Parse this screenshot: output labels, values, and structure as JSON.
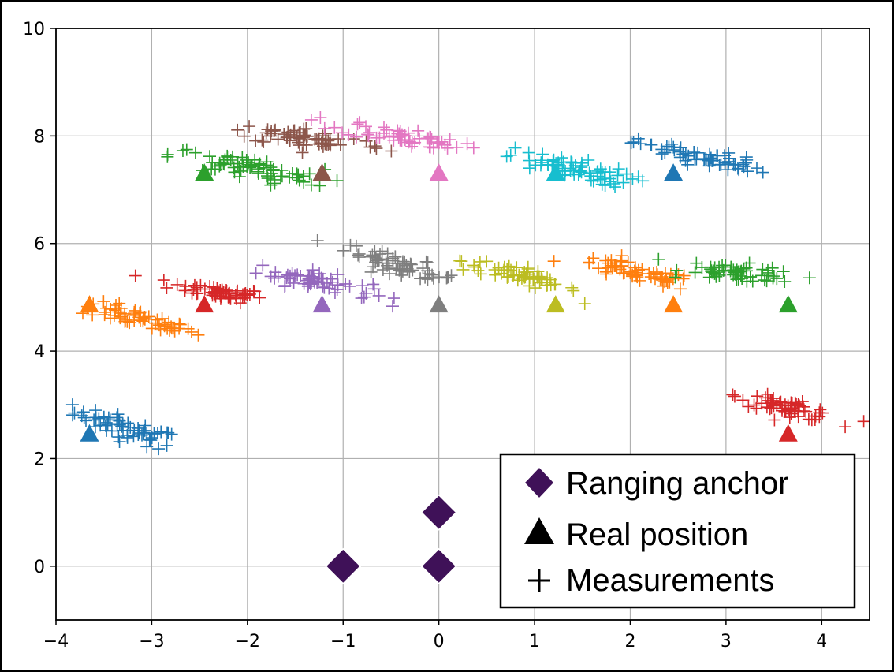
{
  "chart_data": {
    "type": "scatter",
    "title": "",
    "xlabel": "",
    "ylabel": "",
    "xlim": [
      -4,
      4.5
    ],
    "ylim": [
      -1,
      10
    ],
    "xticks": [
      -4,
      -3,
      -2,
      -1,
      0,
      1,
      2,
      3,
      4
    ],
    "yticks": [
      0,
      2,
      4,
      6,
      8,
      10
    ],
    "xtick_labels": [
      "−4",
      "−3",
      "−2",
      "−1",
      "0",
      "1",
      "2",
      "3",
      "4"
    ],
    "ytick_labels": [
      "0",
      "2",
      "4",
      "6",
      "8",
      "10"
    ],
    "grid": true,
    "legend": {
      "placement": "lower-right",
      "entries": [
        {
          "label": "Ranging anchor",
          "marker": "diamond",
          "color": "#3f1158"
        },
        {
          "label": "Real position",
          "marker": "triangle",
          "color": "#000000"
        },
        {
          "label": "Measurements",
          "marker": "plus",
          "color": "#000000"
        }
      ]
    },
    "anchors": [
      {
        "x": -1,
        "y": 0
      },
      {
        "x": 0,
        "y": 0
      },
      {
        "x": 0,
        "y": 1
      }
    ],
    "anchor_color": "#3f1158",
    "groups": [
      {
        "color": "#1f77b4",
        "real": [
          -3.65,
          2.45
        ],
        "center": [
          -3.25,
          2.55
        ],
        "spread": [
          0.28,
          0.18
        ],
        "tilt": -0.55,
        "count": 60
      },
      {
        "color": "#ff7f0e",
        "real": [
          -3.65,
          4.85
        ],
        "center": [
          -3.15,
          4.6
        ],
        "spread": [
          0.3,
          0.14
        ],
        "tilt": -0.4,
        "count": 60
      },
      {
        "color": "#d62728",
        "real": [
          -2.45,
          4.85
        ],
        "center": [
          -2.3,
          5.1
        ],
        "spread": [
          0.25,
          0.12
        ],
        "tilt": -0.25,
        "count": 60
      },
      {
        "color": "#9467bd",
        "real": [
          -1.22,
          4.85
        ],
        "center": [
          -1.3,
          5.3
        ],
        "spread": [
          0.3,
          0.15
        ],
        "tilt": -0.35,
        "count": 60
      },
      {
        "color": "#7f7f7f",
        "real": [
          0.0,
          4.85
        ],
        "center": [
          -0.4,
          5.6
        ],
        "spread": [
          0.3,
          0.14
        ],
        "tilt": -0.5,
        "count": 60
      },
      {
        "color": "#bcbd22",
        "real": [
          1.22,
          4.85
        ],
        "center": [
          0.85,
          5.4
        ],
        "spread": [
          0.3,
          0.14
        ],
        "tilt": -0.45,
        "count": 60
      },
      {
        "color": "#ff7f0e",
        "real": [
          2.45,
          4.85
        ],
        "center": [
          2.05,
          5.45
        ],
        "spread": [
          0.32,
          0.14
        ],
        "tilt": -0.35,
        "count": 60
      },
      {
        "color": "#2ca02c",
        "real": [
          3.65,
          4.85
        ],
        "center": [
          3.15,
          5.45
        ],
        "spread": [
          0.3,
          0.14
        ],
        "tilt": -0.2,
        "count": 60
      },
      {
        "color": "#d62728",
        "real": [
          3.65,
          2.45
        ],
        "center": [
          3.65,
          2.95
        ],
        "spread": [
          0.25,
          0.12
        ],
        "tilt": -0.4,
        "count": 60
      },
      {
        "color": "#2ca02c",
        "real": [
          -2.45,
          7.3
        ],
        "center": [
          -2.0,
          7.4
        ],
        "spread": [
          0.4,
          0.18
        ],
        "tilt": -0.3,
        "count": 70
      },
      {
        "color": "#8c564b",
        "real": [
          -1.22,
          7.3
        ],
        "center": [
          -1.35,
          7.95
        ],
        "spread": [
          0.4,
          0.16
        ],
        "tilt": -0.2,
        "count": 70
      },
      {
        "color": "#e377c2",
        "real": [
          0.0,
          7.3
        ],
        "center": [
          -0.4,
          8.0
        ],
        "spread": [
          0.32,
          0.14
        ],
        "tilt": -0.3,
        "count": 60
      },
      {
        "color": "#17becf",
        "real": [
          1.22,
          7.3
        ],
        "center": [
          1.35,
          7.4
        ],
        "spread": [
          0.33,
          0.16
        ],
        "tilt": -0.35,
        "count": 70
      },
      {
        "color": "#1f77b4",
        "real": [
          2.45,
          7.3
        ],
        "center": [
          2.75,
          7.6
        ],
        "spread": [
          0.33,
          0.14
        ],
        "tilt": -0.35,
        "count": 60
      }
    ]
  }
}
